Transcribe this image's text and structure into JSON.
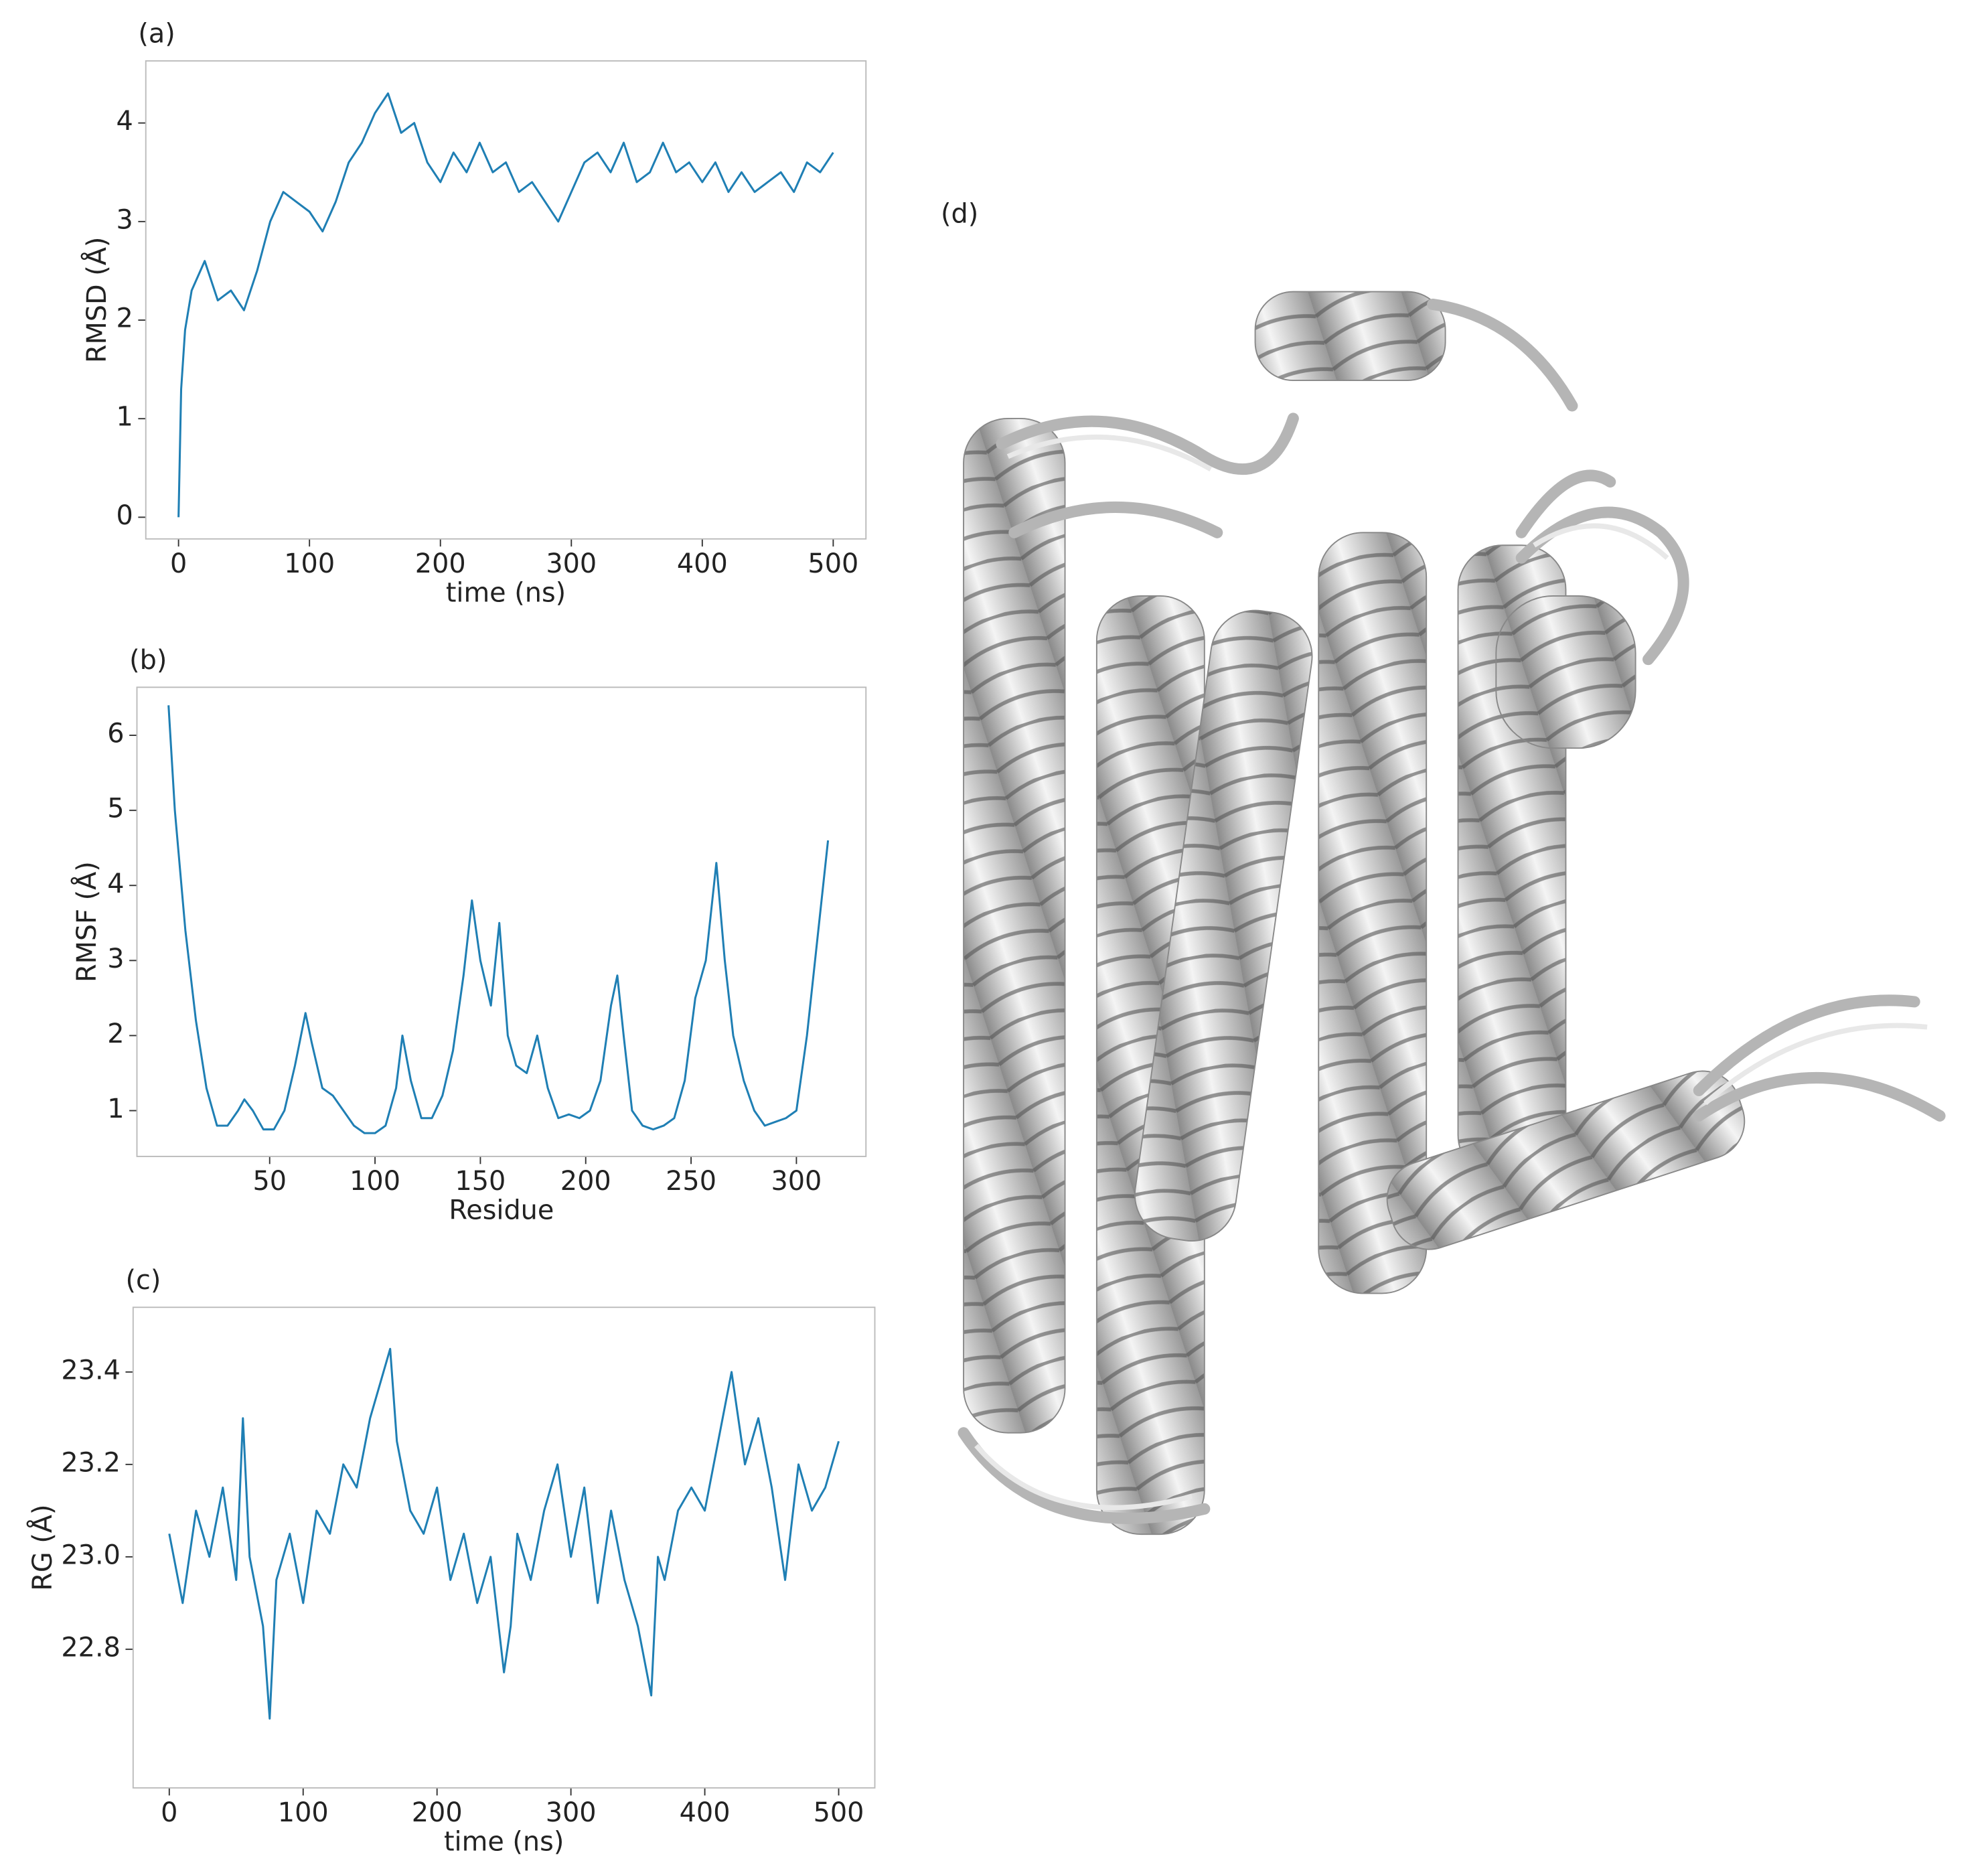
{
  "chart_data": [
    {
      "type": "line",
      "title": "(a)",
      "x_label": "time (ns)",
      "y_label": "RMSD (Å)",
      "x": [
        0,
        2,
        5,
        10,
        20,
        30,
        40,
        50,
        60,
        70,
        80,
        90,
        100,
        110,
        120,
        130,
        140,
        150,
        160,
        170,
        180,
        190,
        200,
        210,
        220,
        230,
        240,
        250,
        260,
        270,
        280,
        290,
        300,
        310,
        320,
        330,
        340,
        350,
        360,
        370,
        380,
        390,
        400,
        410,
        420,
        430,
        440,
        450,
        460,
        470,
        480,
        490,
        500
      ],
      "values": [
        0,
        1.3,
        1.9,
        2.3,
        2.6,
        2.2,
        2.3,
        2.1,
        2.5,
        3.0,
        3.3,
        3.2,
        3.1,
        2.9,
        3.2,
        3.6,
        3.8,
        4.1,
        4.3,
        3.9,
        4.0,
        3.6,
        3.4,
        3.7,
        3.5,
        3.8,
        3.5,
        3.6,
        3.3,
        3.4,
        3.2,
        3.0,
        3.3,
        3.6,
        3.7,
        3.5,
        3.8,
        3.4,
        3.5,
        3.8,
        3.5,
        3.6,
        3.4,
        3.6,
        3.3,
        3.5,
        3.3,
        3.4,
        3.5,
        3.3,
        3.6,
        3.5,
        3.7
      ],
      "color": "#1f7fb4",
      "xlim": [
        -25,
        525
      ],
      "ylim": [
        -0.22,
        4.63
      ],
      "xticks": [
        0,
        100,
        200,
        300,
        400,
        500
      ],
      "yticks": [
        0,
        1,
        2,
        3,
        4
      ]
    },
    {
      "type": "line",
      "title": "(b)",
      "x_label": "Residue",
      "y_label": "RMSF (Å)",
      "x": [
        2,
        5,
        10,
        15,
        20,
        25,
        30,
        35,
        38,
        42,
        47,
        52,
        57,
        62,
        67,
        70,
        75,
        80,
        85,
        90,
        95,
        100,
        105,
        110,
        113,
        117,
        122,
        127,
        132,
        137,
        142,
        146,
        150,
        155,
        159,
        163,
        167,
        172,
        177,
        182,
        187,
        192,
        197,
        202,
        207,
        212,
        215,
        218,
        222,
        227,
        232,
        237,
        242,
        247,
        252,
        257,
        262,
        266,
        270,
        275,
        280,
        285,
        290,
        295,
        300,
        305,
        310,
        315
      ],
      "values": [
        6.4,
        5.0,
        3.4,
        2.2,
        1.3,
        0.8,
        0.8,
        1.0,
        1.15,
        1.0,
        0.75,
        0.75,
        1.0,
        1.6,
        2.3,
        1.9,
        1.3,
        1.2,
        1.0,
        0.8,
        0.7,
        0.7,
        0.8,
        1.3,
        2.0,
        1.4,
        0.9,
        0.9,
        1.2,
        1.8,
        2.8,
        3.8,
        3.0,
        2.4,
        3.5,
        2.0,
        1.6,
        1.5,
        2.0,
        1.3,
        0.9,
        0.95,
        0.9,
        1.0,
        1.4,
        2.4,
        2.8,
        2.0,
        1.0,
        0.8,
        0.75,
        0.8,
        0.9,
        1.4,
        2.5,
        3.0,
        4.3,
        3.0,
        2.0,
        1.4,
        1.0,
        0.8,
        0.85,
        0.9,
        1.0,
        2.0,
        3.3,
        4.6
      ],
      "color": "#1f7fb4",
      "xlim": [
        -13,
        333
      ],
      "ylim": [
        0.39,
        6.64
      ],
      "xticks": [
        50,
        100,
        150,
        200,
        250,
        300
      ],
      "yticks": [
        1,
        2,
        3,
        4,
        5,
        6
      ]
    },
    {
      "type": "line",
      "title": "(c)",
      "x_label": "time (ns)",
      "y_label": "RG (Å)",
      "x": [
        0,
        10,
        20,
        30,
        40,
        50,
        55,
        60,
        70,
        75,
        80,
        90,
        100,
        110,
        120,
        130,
        140,
        150,
        160,
        165,
        170,
        180,
        190,
        200,
        210,
        220,
        230,
        240,
        250,
        255,
        260,
        270,
        280,
        290,
        300,
        310,
        320,
        330,
        340,
        350,
        360,
        365,
        370,
        380,
        390,
        400,
        410,
        420,
        430,
        440,
        450,
        460,
        470,
        480,
        490,
        500
      ],
      "values": [
        23.05,
        22.9,
        23.1,
        23.0,
        23.15,
        22.95,
        23.3,
        23.0,
        22.85,
        22.65,
        22.95,
        23.05,
        22.9,
        23.1,
        23.05,
        23.2,
        23.15,
        23.3,
        23.4,
        23.45,
        23.25,
        23.1,
        23.05,
        23.15,
        22.95,
        23.05,
        22.9,
        23.0,
        22.75,
        22.85,
        23.05,
        22.95,
        23.1,
        23.2,
        23.0,
        23.15,
        22.9,
        23.1,
        22.95,
        22.85,
        22.7,
        23.0,
        22.95,
        23.1,
        23.15,
        23.1,
        23.25,
        23.4,
        23.2,
        23.3,
        23.15,
        22.95,
        23.2,
        23.1,
        23.15,
        23.25
      ],
      "color": "#1f7fb4",
      "xlim": [
        -27,
        527
      ],
      "ylim": [
        22.5,
        23.54
      ],
      "xticks": [
        0,
        100,
        200,
        300,
        400,
        500
      ],
      "yticks": [
        22.8,
        {
          "value": 23,
          "label": "23.0"
        },
        23.2,
        23.4
      ]
    }
  ],
  "figure": {
    "label": "(d)"
  }
}
